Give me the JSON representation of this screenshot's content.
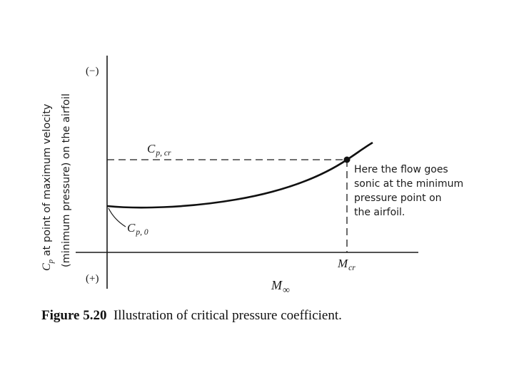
{
  "diagram": {
    "y_axis_title_line1": "C",
    "y_axis_title_line1_sub": "p",
    "y_axis_title_line1_rest": " at point of maximum velocity",
    "y_axis_title_line2": "(minimum pressure) on the airfoil",
    "y_top_sign": "(−)",
    "y_bottom_sign": "(+)",
    "x_axis_label_main": "M",
    "x_axis_label_sub": "∞",
    "cp_cr_main": "C",
    "cp_cr_sub": "p, cr",
    "cp0_main": "C",
    "cp0_sub": "p, 0",
    "mcr_main": "M",
    "mcr_sub": "cr",
    "annotation_lines": [
      "Here the flow goes",
      "sonic at the minimum",
      "pressure point on",
      "the airfoil."
    ]
  },
  "caption": {
    "label": "Figure 5.20",
    "text": "Illustration of critical pressure coefficient."
  }
}
